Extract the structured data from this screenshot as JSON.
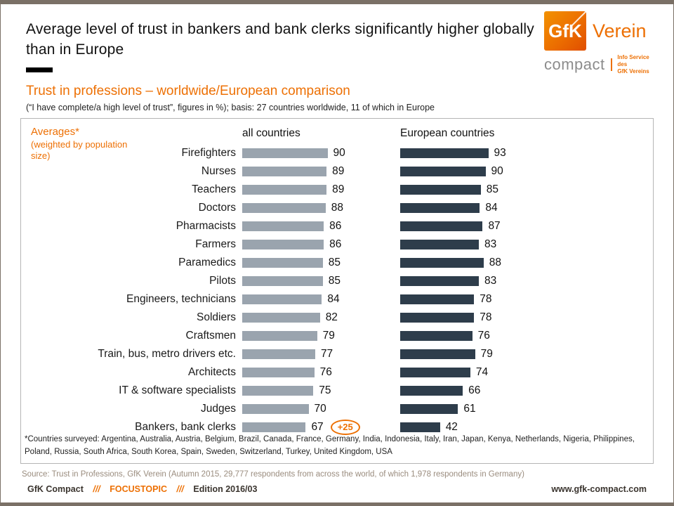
{
  "header": {
    "title": "Average level of trust in bankers and bank clerks significantly higher globally than in Europe"
  },
  "logo": {
    "square_text": "GfK",
    "brand": "Verein",
    "product": "compact",
    "claim_line1": "Info Service des",
    "claim_line2": "GfK Vereins"
  },
  "intro": {
    "subtitle": "Trust in professions – worldwide/European comparison",
    "basis": "(“I have complete/a high level of trust”, figures in %); basis: 27 countries worldwide, 11 of which in Europe"
  },
  "chart_note": {
    "title": "Averages*",
    "subtitle": "(weighted by population size)"
  },
  "chart_data": {
    "type": "bar",
    "orientation": "horizontal",
    "title": "Trust in professions – worldwide/European comparison",
    "value_unit": "%",
    "value_range": [
      0,
      100
    ],
    "grid": false,
    "column_headers": [
      "all countries",
      "European countries"
    ],
    "categories": [
      "Firefighters",
      "Nurses",
      "Teachers",
      "Doctors",
      "Pharmacists",
      "Farmers",
      "Paramedics",
      "Pilots",
      "Engineers, technicians",
      "Soldiers",
      "Craftsmen",
      "Train, bus, metro drivers etc.",
      "Architects",
      "IT & software specialists",
      "Judges",
      "Bankers, bank clerks"
    ],
    "series": [
      {
        "name": "all countries",
        "color": "#9AA4AE",
        "values": [
          90,
          89,
          89,
          88,
          86,
          86,
          85,
          85,
          84,
          82,
          79,
          77,
          76,
          75,
          70,
          67
        ]
      },
      {
        "name": "European countries",
        "color": "#2E3D4B",
        "values": [
          93,
          90,
          85,
          84,
          87,
          83,
          88,
          83,
          78,
          78,
          76,
          79,
          74,
          66,
          61,
          42
        ]
      }
    ],
    "annotations": [
      {
        "row_index": 15,
        "text": "+25",
        "style": "orange-ellipse",
        "position": "after-first-series-value"
      }
    ]
  },
  "footnote": "*Countries surveyed: Argentina, Australia, Austria, Belgium, Brazil, Canada, France, Germany, India, Indonesia, Italy, Iran, Japan, Kenya, Netherlands, Nigeria, Philippines, Poland, Russia, South Africa, South Korea, Spain, Sweden, Switzerland, Turkey, United Kingdom, USA",
  "source": "Source: Trust in Professions, GfK Verein (Autumn 2015, 29,777 respondents from across the world, of which 1,978 respondents in Germany)",
  "footer": {
    "brand": "GfK Compact",
    "sep1": "///",
    "topic": "FOCUSTOPIC",
    "sep2": "///",
    "edition": "Edition 2016/03",
    "website": "www.gfk-compact.com"
  },
  "colors": {
    "accent_orange": "#ED7004",
    "bar_all_countries": "#9AA4AE",
    "bar_european": "#2E3D4B",
    "frame": "#7A7066"
  }
}
